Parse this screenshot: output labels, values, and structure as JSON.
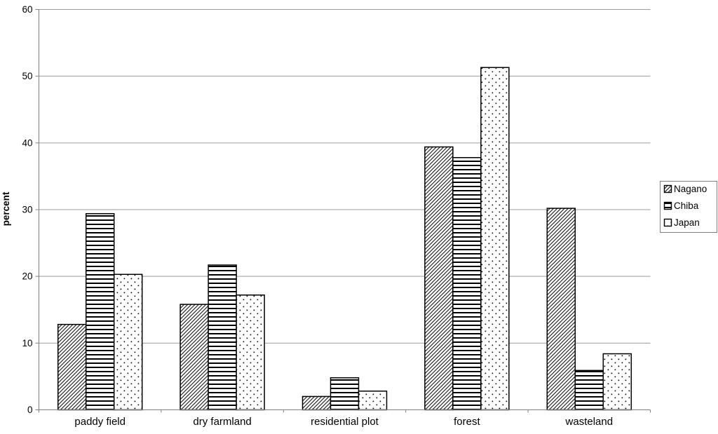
{
  "chart_data": {
    "type": "bar",
    "title": "",
    "xlabel": "",
    "ylabel": "percent",
    "ylim": [
      0,
      60
    ],
    "y_ticks": [
      0,
      10,
      20,
      30,
      40,
      50,
      60
    ],
    "grid": "horizontal gridlines on",
    "legend_position": "right outside",
    "categories": [
      "paddy field",
      "dry farmland",
      "residential plot",
      "forest",
      "wasteland"
    ],
    "series": [
      {
        "name": "Nagano",
        "pattern": "diagonal-hatch",
        "values": [
          12.8,
          15.8,
          2.0,
          39.4,
          30.2
        ]
      },
      {
        "name": "Chiba",
        "pattern": "horizontal-lines",
        "values": [
          29.4,
          21.7,
          4.8,
          37.8,
          5.9
        ]
      },
      {
        "name": "Japan",
        "pattern": "dots",
        "values": [
          20.3,
          17.2,
          2.8,
          51.3,
          8.4
        ]
      }
    ],
    "colors": {
      "background": "#ffffff",
      "bar_fill": "#ffffff",
      "bar_stroke": "#000000",
      "pattern_ink": "#000000",
      "gridline": "#9c9c9c",
      "axis": "#808080",
      "text": "#000000",
      "legend_border": "#7f7f7f"
    }
  }
}
